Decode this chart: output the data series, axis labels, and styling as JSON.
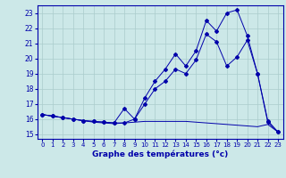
{
  "xlabel": "Graphe des températures (°c)",
  "x_labels": [
    "0",
    "1",
    "2",
    "3",
    "4",
    "5",
    "6",
    "7",
    "8",
    "9",
    "10",
    "11",
    "12",
    "13",
    "14",
    "15",
    "16",
    "17",
    "18",
    "19",
    "20",
    "21",
    "22",
    "23"
  ],
  "ylim": [
    14.7,
    23.5
  ],
  "xlim": [
    -0.5,
    23.5
  ],
  "yticks": [
    15,
    16,
    17,
    18,
    19,
    20,
    21,
    22,
    23
  ],
  "bg_color": "#cce8e8",
  "grid_color": "#aacccc",
  "line_color": "#0000aa",
  "line1": [
    16.3,
    16.2,
    16.1,
    16.0,
    15.9,
    15.8,
    15.75,
    15.7,
    15.75,
    15.8,
    15.85,
    15.85,
    15.85,
    15.85,
    15.85,
    15.8,
    15.75,
    15.7,
    15.65,
    15.6,
    15.55,
    15.5,
    15.65,
    15.15
  ],
  "line2": [
    16.3,
    16.2,
    16.1,
    16.0,
    15.9,
    15.85,
    15.8,
    15.75,
    16.7,
    16.0,
    17.0,
    18.0,
    18.5,
    19.3,
    19.0,
    19.9,
    21.6,
    21.1,
    19.5,
    20.1,
    21.2,
    19.0,
    15.8,
    15.15
  ],
  "line3": [
    16.3,
    16.2,
    16.1,
    16.0,
    15.9,
    15.85,
    15.8,
    15.75,
    15.75,
    16.0,
    17.4,
    18.5,
    19.3,
    20.3,
    19.5,
    20.5,
    22.5,
    21.8,
    23.0,
    23.2,
    21.5,
    19.0,
    15.9,
    15.15
  ]
}
